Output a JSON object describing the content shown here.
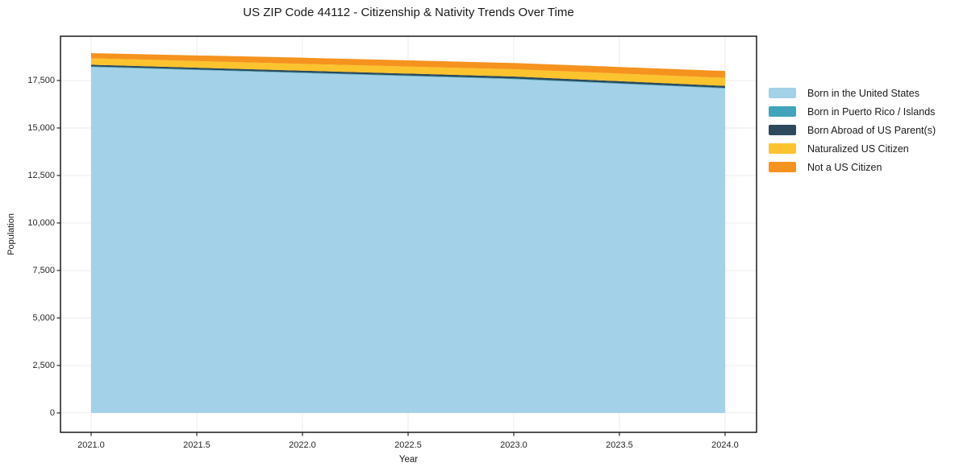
{
  "chart_data": {
    "type": "area",
    "stacked": true,
    "title": "US ZIP Code 44112 - Citizenship & Nativity Trends Over Time",
    "xlabel": "Year",
    "ylabel": "Population",
    "x": [
      2021,
      2022,
      2023,
      2024
    ],
    "series": [
      {
        "name": "Born in the United States",
        "color": "#a3d1e8",
        "values": [
          18210,
          17890,
          17570,
          17080
        ]
      },
      {
        "name": "Born in Puerto Rico / Islands",
        "color": "#41a4bc",
        "values": [
          30,
          30,
          30,
          30
        ]
      },
      {
        "name": "Born Abroad of US Parent(s)",
        "color": "#2c4a5c",
        "values": [
          90,
          100,
          110,
          110
        ]
      },
      {
        "name": "Naturalized US Citizen",
        "color": "#fbc32d",
        "values": [
          340,
          355,
          380,
          420
        ]
      },
      {
        "name": "Not a US Citizen",
        "color": "#f5931e",
        "values": [
          270,
          325,
          330,
          360
        ]
      }
    ],
    "totals": [
      18940,
      18700,
      18420,
      18000
    ],
    "xlim": [
      2020.855,
      2024.149
    ],
    "ylim": [
      -1020,
      19830
    ],
    "x_ticks": [
      {
        "value": 2021.0,
        "label": "2021.0"
      },
      {
        "value": 2021.5,
        "label": "2021.5"
      },
      {
        "value": 2022.0,
        "label": "2022.0"
      },
      {
        "value": 2022.5,
        "label": "2022.5"
      },
      {
        "value": 2023.0,
        "label": "2023.0"
      },
      {
        "value": 2023.5,
        "label": "2023.5"
      },
      {
        "value": 2024.0,
        "label": "2024.0"
      }
    ],
    "y_ticks": [
      {
        "value": 0,
        "label": "0"
      },
      {
        "value": 2500,
        "label": "2,500"
      },
      {
        "value": 5000,
        "label": "5,000"
      },
      {
        "value": 7500,
        "label": "7,500"
      },
      {
        "value": 10000,
        "label": "10,000"
      },
      {
        "value": 12500,
        "label": "12,500"
      },
      {
        "value": 15000,
        "label": "15,000"
      },
      {
        "value": 17500,
        "label": "17,500"
      }
    ],
    "grid": true,
    "legend_position": "right",
    "colors": {
      "grid": "#ececec",
      "frame": "#1a1a1a",
      "tick": "#262626",
      "background": "#ffffff"
    }
  }
}
